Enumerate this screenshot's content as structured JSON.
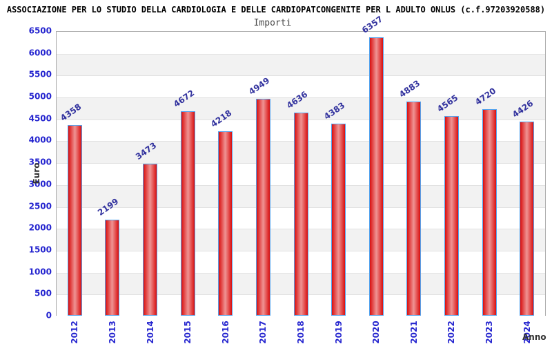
{
  "header": {
    "title": "ASSOCIAZIONE PER LO STUDIO DELLA CARDIOLOGIA E DELLE CARDIOPATCONGENITE PER L ADULTO ONLUS (c.f.97203920588)",
    "subtitle": "Importi"
  },
  "chart_data": {
    "type": "bar",
    "title": "Importi",
    "categories": [
      "2012",
      "2013",
      "2014",
      "2015",
      "2016",
      "2017",
      "2018",
      "2019",
      "2020",
      "2021",
      "2022",
      "2023",
      "2024"
    ],
    "values": [
      4358,
      2199,
      3473,
      4672,
      4218,
      4949,
      4636,
      4383,
      6357,
      4883,
      4565,
      4720,
      4426
    ],
    "xlabel": "Anno",
    "ylabel": "Euro",
    "ylim": [
      0,
      6500
    ],
    "ytick_step": 500,
    "grid": true,
    "legend_position": "none",
    "colors": {
      "axis_tick_blue": "#2424cf",
      "value_label_blue": "#32329e",
      "bar_red_edge": "#d90f0f",
      "bar_red_center": "#ef9494",
      "bar_border_blue": "#54a4ef",
      "band_gray": "#f2f2f2",
      "grid_line": "#e2e2e2",
      "plot_border": "#ababab",
      "axis_title_gray": "#333333",
      "title_black": "#000000",
      "subtitle_gray": "#4a4a4a"
    }
  }
}
